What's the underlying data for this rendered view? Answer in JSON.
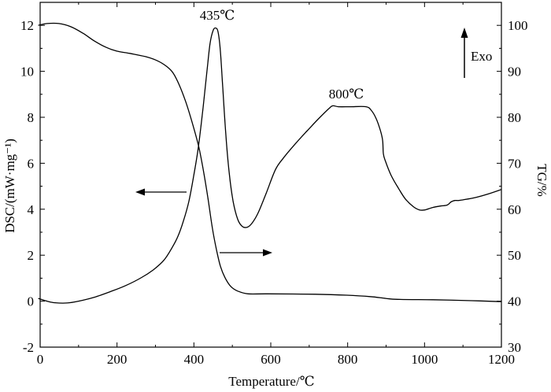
{
  "chart_data": {
    "type": "line",
    "xlabel": "Temperature/℃",
    "xlim": [
      0,
      1200
    ],
    "xticks": [
      0,
      200,
      400,
      600,
      800,
      1000,
      1200
    ],
    "y_left": {
      "label": "DSC/(mW·mg⁻¹)",
      "lim": [
        -2,
        13
      ],
      "ticks": [
        -2,
        0,
        2,
        4,
        6,
        8,
        10,
        12
      ],
      "series": [
        {
          "x": [
            -5,
            18,
            39,
            70,
            100,
            141,
            182,
            223,
            264,
            295,
            322,
            342,
            358,
            373,
            387,
            399,
            412,
            424,
            434,
            442,
            450,
            457,
            463,
            469,
            475,
            483,
            492,
            502,
            514,
            526,
            539,
            551,
            567,
            588,
            612,
            633,
            664,
            694,
            725,
            752,
            762,
            776,
            807,
            848,
            862,
            874,
            885,
            891,
            893,
            899,
            913,
            930,
            950,
            971,
            987,
            1001,
            1022,
            1042,
            1059,
            1069,
            1079,
            1089,
            1104,
            1135,
            1165,
            1200
          ],
          "y": [
            0.12,
            0.0,
            -0.07,
            -0.08,
            0.0,
            0.17,
            0.41,
            0.68,
            1.03,
            1.37,
            1.78,
            2.29,
            2.8,
            3.5,
            4.35,
            5.4,
            6.75,
            8.45,
            10.0,
            11.2,
            11.78,
            11.88,
            11.7,
            10.86,
            9.3,
            7.26,
            5.55,
            4.35,
            3.56,
            3.25,
            3.22,
            3.39,
            3.84,
            4.69,
            5.72,
            6.23,
            6.85,
            7.4,
            7.95,
            8.39,
            8.5,
            8.46,
            8.46,
            8.46,
            8.29,
            7.95,
            7.43,
            6.99,
            6.4,
            6.06,
            5.48,
            4.97,
            4.45,
            4.11,
            3.97,
            3.97,
            4.08,
            4.14,
            4.18,
            4.32,
            4.38,
            4.38,
            4.42,
            4.52,
            4.66,
            4.86
          ]
        }
      ]
    },
    "y_right": {
      "label": "TG/%",
      "lim": [
        30,
        105
      ],
      "ticks": [
        30,
        40,
        50,
        60,
        70,
        80,
        90,
        100
      ],
      "series": [
        {
          "x": [
            -5,
            18,
            49,
            80,
            111,
            141,
            172,
            199,
            233,
            274,
            305,
            330,
            346,
            362,
            379,
            395,
            412,
            424,
            436,
            448,
            459,
            469,
            481,
            496,
            514,
            541,
            592,
            715,
            797,
            858,
            899,
            930,
            1022,
            1124,
            1200
          ],
          "y": [
            100.0,
            100.4,
            100.4,
            99.7,
            98.3,
            96.6,
            95.2,
            94.4,
            93.9,
            93.2,
            92.3,
            91.0,
            89.6,
            87.0,
            83.3,
            79.0,
            73.8,
            68.7,
            62.7,
            55.9,
            51.1,
            47.6,
            45.1,
            43.2,
            42.2,
            41.6,
            41.6,
            41.5,
            41.3,
            41.0,
            40.6,
            40.4,
            40.3,
            40.1,
            39.9
          ]
        }
      ]
    },
    "annotations": {
      "peak_low": "435℃",
      "peak_high": "800℃",
      "exo": "Exo"
    },
    "grid": false,
    "colors": {
      "line": "#000000",
      "background": "#ffffff"
    }
  }
}
